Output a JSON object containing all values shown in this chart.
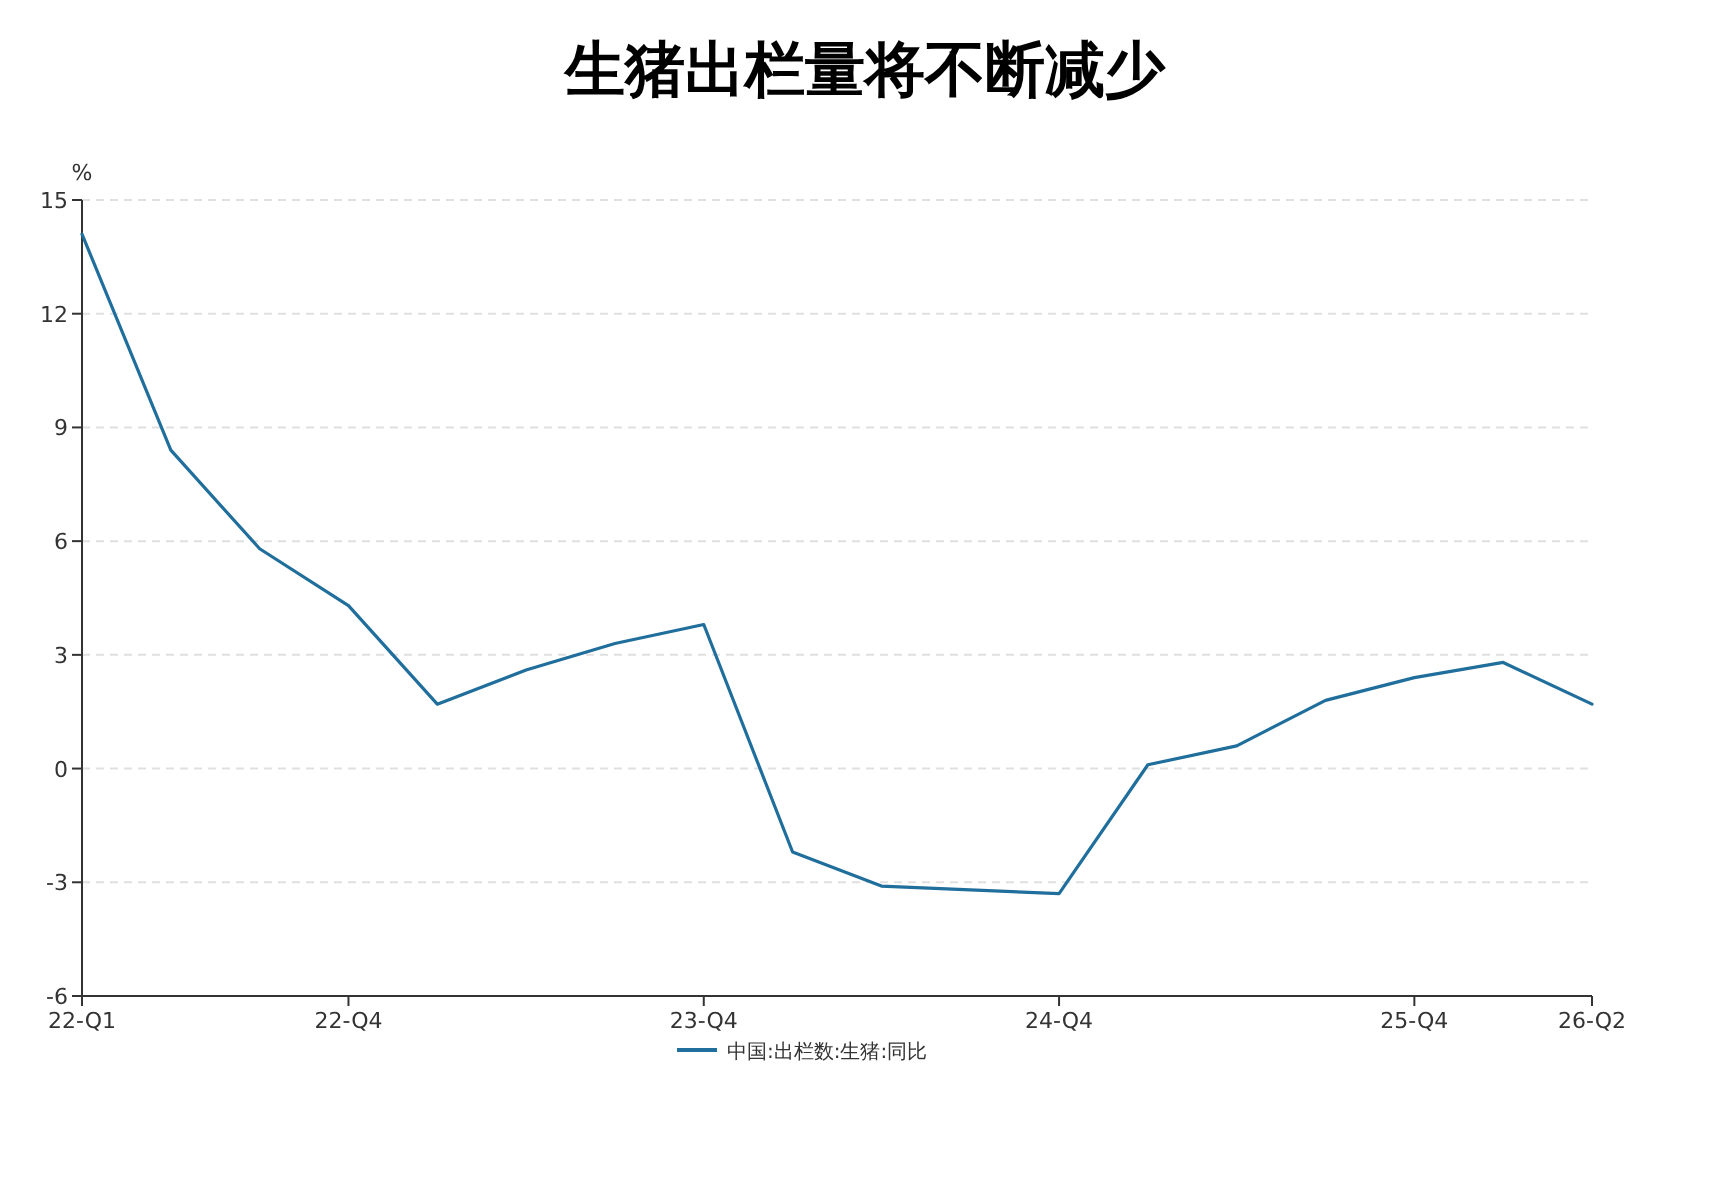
{
  "chart_data": {
    "type": "line",
    "title": "生猪出栏量将不断减少",
    "ylabel": "%",
    "categories": [
      "22-Q1",
      null,
      null,
      "22-Q4",
      null,
      null,
      null,
      "23-Q4",
      null,
      null,
      null,
      "24-Q4",
      null,
      null,
      null,
      "25-Q4",
      null,
      "26-Q2"
    ],
    "series": [
      {
        "name": "中国:出栏数:生猪:同比",
        "color": "#1f6e9c",
        "values": [
          14.1,
          8.4,
          5.8,
          4.3,
          1.7,
          2.6,
          3.3,
          3.8,
          -2.2,
          -3.1,
          -3.2,
          -3.3,
          0.1,
          0.6,
          1.8,
          2.4,
          2.8,
          1.7
        ]
      }
    ],
    "ylim": [
      -6,
      15
    ],
    "yticks": [
      -6,
      -3,
      0,
      3,
      6,
      9,
      12,
      15
    ],
    "grid": "y",
    "legend": "bottom"
  }
}
